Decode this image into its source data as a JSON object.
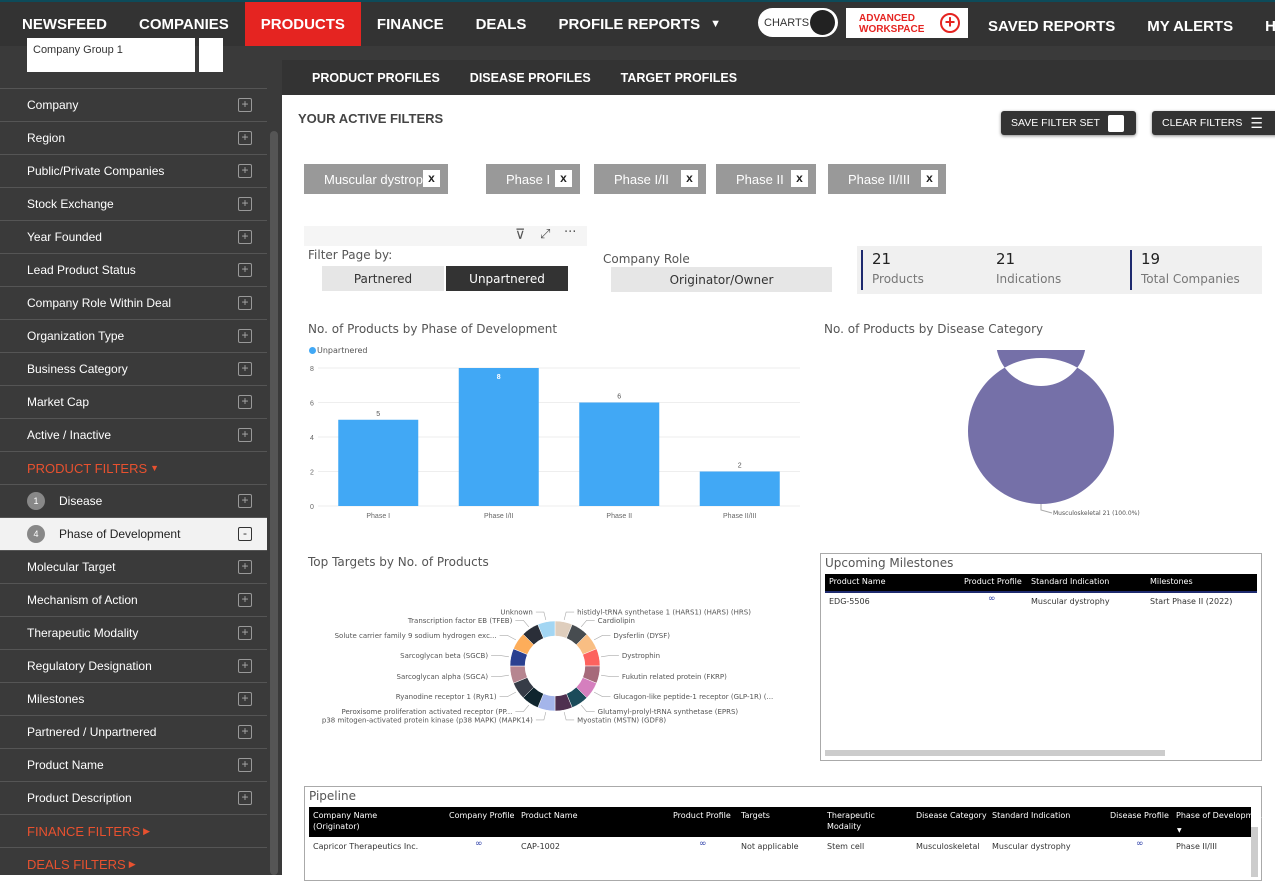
{
  "nav": {
    "items": [
      "NEWSFEED",
      "COMPANIES",
      "PRODUCTS",
      "FINANCE",
      "DEALS",
      "PROFILE REPORTS"
    ],
    "active": "PRODUCTS",
    "charts_toggle": "CHARTS",
    "advanced": [
      "ADVANCED",
      "WORKSPACE"
    ],
    "right": [
      "SAVED REPORTS",
      "MY ALERTS",
      "HELP"
    ],
    "accent": "#e52421"
  },
  "sidebar": {
    "select": "Company Group 1",
    "items": [
      "Company",
      "Region",
      "Public/Private Companies",
      "Stock Exchange",
      "Year Founded",
      "Lead Product Status",
      "Company Role Within Deal",
      "Organization Type",
      "Business Category",
      "Market Cap",
      "Active / Inactive"
    ],
    "product_filters": "PRODUCT FILTERS",
    "disease": {
      "count": "1",
      "label": "Disease"
    },
    "phase": {
      "count": "4",
      "label": "Phase of Development"
    },
    "product_items": [
      "Molecular Target",
      "Mechanism of Action",
      "Therapeutic Modality",
      "Regulatory Designation",
      "Milestones",
      "Partnered / Unpartnered",
      "Product Name",
      "Product Description"
    ],
    "finance_filters": "FINANCE FILTERS",
    "deals_filters": "DEALS FILTERS"
  },
  "subnav": [
    "PRODUCT PROFILES",
    "DISEASE PROFILES",
    "TARGET PROFILES"
  ],
  "filters": {
    "title": "YOUR ACTIVE FILTERS",
    "save": "SAVE FILTER SET",
    "clear": "CLEAR FILTERS",
    "chips": [
      "Muscular dystrophy",
      "Phase I",
      "Phase I/II",
      "Phase II",
      "Phase II/III"
    ],
    "remove": "x"
  },
  "report": {
    "filter_page_by": "Filter Page by:",
    "partnered": "Partnered",
    "unpartnered": "Unpartnered",
    "company_role": "Company Role",
    "role_value": "Originator/Owner",
    "kpis": [
      {
        "value": "21",
        "label": "Products"
      },
      {
        "value": "21",
        "label": "Indications"
      },
      {
        "value": "19",
        "label": "Total Companies"
      }
    ]
  },
  "chart_data": [
    {
      "type": "bar",
      "title": "No. of Products by Phase of Development",
      "categories": [
        "Phase I",
        "Phase I/II",
        "Phase II",
        "Phase II/III"
      ],
      "series": [
        {
          "name": "Unpartnered",
          "values": [
            5,
            8,
            6,
            2
          ],
          "color": "#41a8f5"
        }
      ],
      "ylim": [
        0,
        8
      ],
      "yticks": [
        0,
        2,
        4,
        6,
        8
      ],
      "grid": true,
      "legend": "top-left"
    },
    {
      "type": "pie",
      "title": "No. of Products by Disease Category",
      "slices": [
        {
          "label": "Musculoskeletal",
          "value": 21,
          "pct": "100.0%",
          "color": "#7570a8"
        }
      ],
      "data_label": "Musculoskeletal 21 (100.0%)"
    },
    {
      "type": "pie",
      "title": "Top Targets by No. of Products",
      "slices": [
        {
          "label": "histidyl-tRNA synthetase 1 (HARS1) (HARS) (HRS)",
          "value": 1,
          "color": "#dfcebd"
        },
        {
          "label": "Cardiolipin",
          "value": 1,
          "color": "#474c50"
        },
        {
          "label": "Dysferlin (DYSF)",
          "value": 1,
          "color": "#f9be83"
        },
        {
          "label": "Dystrophin",
          "value": 1,
          "color": "#fd625e"
        },
        {
          "label": "Fukutin related protein (FKRP)",
          "value": 1,
          "color": "#a66a7a"
        },
        {
          "label": "Glucagon-like peptide-1 receptor (GLP-1R) (...",
          "value": 1,
          "color": "#d57fbe"
        },
        {
          "label": "Glutamyl-prolyl-tRNA synthetase (EPRS)",
          "value": 1,
          "color": "#1b4b5a"
        },
        {
          "label": "Myostatin (MSTN) (GDF8)",
          "value": 1,
          "color": "#4f3050"
        },
        {
          "label": "p38 mitogen-activated protein kinase (p38 MAPK) (MAPK14)",
          "value": 1,
          "color": "#a4b5ea"
        },
        {
          "label": "Peroxisome proliferation activated receptor (PP...",
          "value": 1,
          "color": "#0f252e"
        },
        {
          "label": "Ryanodine receptor 1 (RyR1)",
          "value": 1,
          "color": "#363c47"
        },
        {
          "label": "Sarcoglycan alpha (SGCA)",
          "value": 1,
          "color": "#b68590"
        },
        {
          "label": "Sarcoglycan beta (SGCB)",
          "value": 1,
          "color": "#2a4090"
        },
        {
          "label": "Solute carrier family 9 sodium hydrogen exc...",
          "value": 1,
          "color": "#fdad5a"
        },
        {
          "label": "Transcription factor EB (TFEB)",
          "value": 1,
          "color": "#2a2e38"
        },
        {
          "label": "Unknown",
          "value": 1,
          "color": "#a3d6f3"
        }
      ]
    }
  ],
  "milestones": {
    "title": "Upcoming Milestones",
    "columns": [
      "Product Name",
      "Product Profile",
      "Standard Indication",
      "Milestones"
    ],
    "rows": [
      [
        "EDG-5506",
        "link",
        "Muscular dystrophy",
        "Start Phase II (2022)"
      ]
    ]
  },
  "pipeline": {
    "title": "Pipeline",
    "columns": [
      "Company Name (Originator)",
      "Company Profile",
      "Product Name",
      "Product Profile",
      "Targets",
      "Therapeutic Modality",
      "Disease Category",
      "Standard Indication",
      "Disease Profile",
      "Phase of Developme..."
    ],
    "rows": [
      [
        "Capricor Therapeutics Inc.",
        "link",
        "CAP-1002",
        "link",
        "Not applicable",
        "Stem cell",
        "Musculoskeletal",
        "Muscular dystrophy",
        "link",
        "Phase II/III"
      ]
    ]
  }
}
